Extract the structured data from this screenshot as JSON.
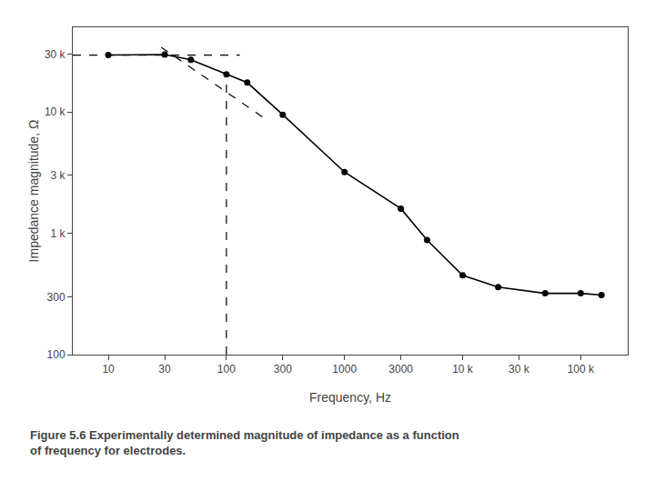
{
  "chart_data": {
    "type": "line",
    "xlabel": "Frequency, Hz",
    "ylabel": "Impedance magnitude, Ω",
    "caption": "Figure 5.6 Experimentally determined magnitude of impedance as a function\nof frequency for electrodes.",
    "log": true,
    "grid": false,
    "xlim": [
      5,
      250000
    ],
    "ylim": [
      100,
      50000
    ],
    "xticks": [
      10,
      30,
      100,
      300,
      1000,
      3000,
      {
        "value": 10000,
        "label": "10 k"
      },
      {
        "value": 30000,
        "label": "30 k"
      },
      {
        "value": 100000,
        "label": "100 k"
      }
    ],
    "yticks": [
      100,
      300,
      {
        "value": 1000,
        "label": "1 k"
      },
      {
        "value": 3000,
        "label": "3 k"
      },
      {
        "value": 10000,
        "label": "10 k"
      },
      {
        "value": 30000,
        "label": "30 k"
      }
    ],
    "series": [
      {
        "x": [
          10,
          30,
          50,
          100,
          150,
          300,
          1000,
          3000,
          5000,
          10000,
          20000,
          50000,
          100000,
          150000
        ],
        "values": [
          29500,
          29800,
          27000,
          20500,
          17500,
          9500,
          3200,
          1600,
          880,
          450,
          360,
          320,
          320,
          310
        ],
        "color": "#000000",
        "marker": "circle",
        "line_style": "solid"
      },
      {
        "x": [
          5,
          130
        ],
        "values": [
          29500,
          29500
        ],
        "color": "#000000",
        "line_style": "dashed"
      },
      {
        "x": [
          28,
          210
        ],
        "values": [
          34254,
          8888
        ],
        "color": "#000000",
        "line_style": "dashed"
      },
      {
        "x": [
          100,
          100
        ],
        "values": [
          100,
          21000
        ],
        "color": "#000000",
        "line_style": "dashed"
      }
    ]
  }
}
